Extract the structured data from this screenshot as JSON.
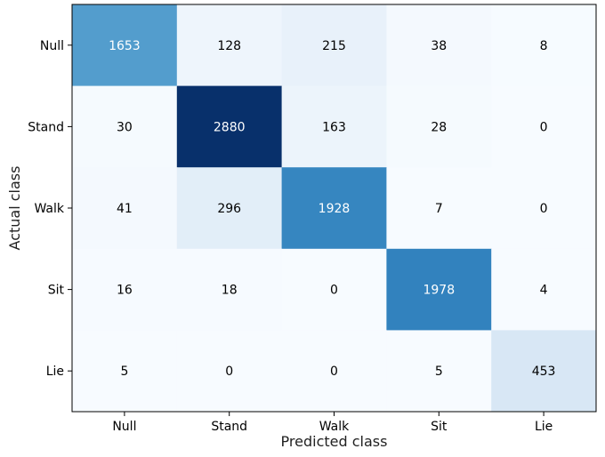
{
  "chart_data": {
    "type": "heatmap",
    "title": "",
    "xlabel": "Predicted class",
    "ylabel": "Actual class",
    "x_categories": [
      "Null",
      "Stand",
      "Walk",
      "Sit",
      "Lie"
    ],
    "y_categories": [
      "Null",
      "Stand",
      "Walk",
      "Sit",
      "Lie"
    ],
    "values": [
      [
        1653,
        128,
        215,
        38,
        8
      ],
      [
        30,
        2880,
        163,
        28,
        0
      ],
      [
        41,
        296,
        1928,
        7,
        0
      ],
      [
        16,
        18,
        0,
        1978,
        4
      ],
      [
        5,
        0,
        0,
        5,
        453
      ]
    ],
    "colormap": "Blues",
    "colors": {
      "low": "#f7fbff",
      "high": "#08306b"
    },
    "grid": false,
    "legend": "none"
  }
}
